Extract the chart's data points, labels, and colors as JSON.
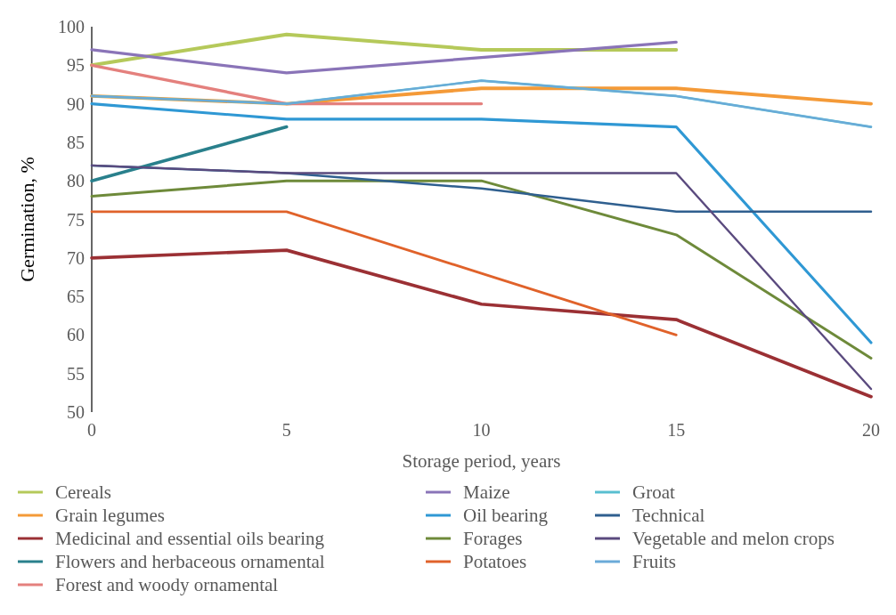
{
  "chart_data": {
    "type": "line",
    "xlabel": "Storage period, years",
    "ylabel": "Germination, %",
    "x": [
      0,
      5,
      10,
      15,
      20
    ],
    "xlim": [
      0,
      20
    ],
    "xticks": [
      0,
      5,
      10,
      15,
      20
    ],
    "ylim": [
      50,
      100
    ],
    "yticks": [
      50,
      55,
      60,
      65,
      70,
      75,
      80,
      85,
      90,
      95,
      100
    ],
    "grid": false,
    "legend": "bottom",
    "marker": "none",
    "line_style": "solid",
    "series": [
      {
        "name": "Cereals",
        "color": "#b5c95a",
        "values": [
          95,
          99,
          97,
          97,
          null
        ]
      },
      {
        "name": "Grain legumes",
        "color": "#f49a38",
        "values": [
          91,
          90,
          92,
          92,
          90
        ]
      },
      {
        "name": "Medicinal and essential oils bearing",
        "color": "#9b3034",
        "values": [
          70,
          71,
          64,
          62,
          52
        ]
      },
      {
        "name": "Flowers and herbaceous ornamental",
        "color": "#29808c",
        "values": [
          80,
          87,
          null,
          null,
          null
        ]
      },
      {
        "name": "Forest and woody ornamental",
        "color": "#e4807d",
        "values": [
          95,
          90,
          90,
          null,
          null
        ]
      },
      {
        "name": "Maize",
        "color": "#8a74b8",
        "values": [
          97,
          94,
          96,
          98,
          null
        ]
      },
      {
        "name": "Oil bearing",
        "color": "#2f98d4",
        "values": [
          90,
          88,
          88,
          87,
          59
        ]
      },
      {
        "name": "Forages",
        "color": "#6e8a3a",
        "values": [
          78,
          80,
          80,
          73,
          57
        ]
      },
      {
        "name": "Potatoes",
        "color": "#e0622a",
        "values": [
          76,
          76,
          68,
          60,
          null
        ]
      },
      {
        "name": "Groat",
        "color": "#58bfd0",
        "values": [
          91,
          90,
          93,
          91,
          87
        ]
      },
      {
        "name": "Technical",
        "color": "#2f5f8f",
        "values": [
          82,
          81,
          79,
          76,
          76
        ]
      },
      {
        "name": "Vegetable and melon crops",
        "color": "#5a4a7e",
        "values": [
          82,
          81,
          81,
          81,
          53
        ]
      },
      {
        "name": "Fruits",
        "color": "#6aaad8",
        "values": [
          91,
          90,
          93,
          91,
          87
        ]
      }
    ]
  }
}
